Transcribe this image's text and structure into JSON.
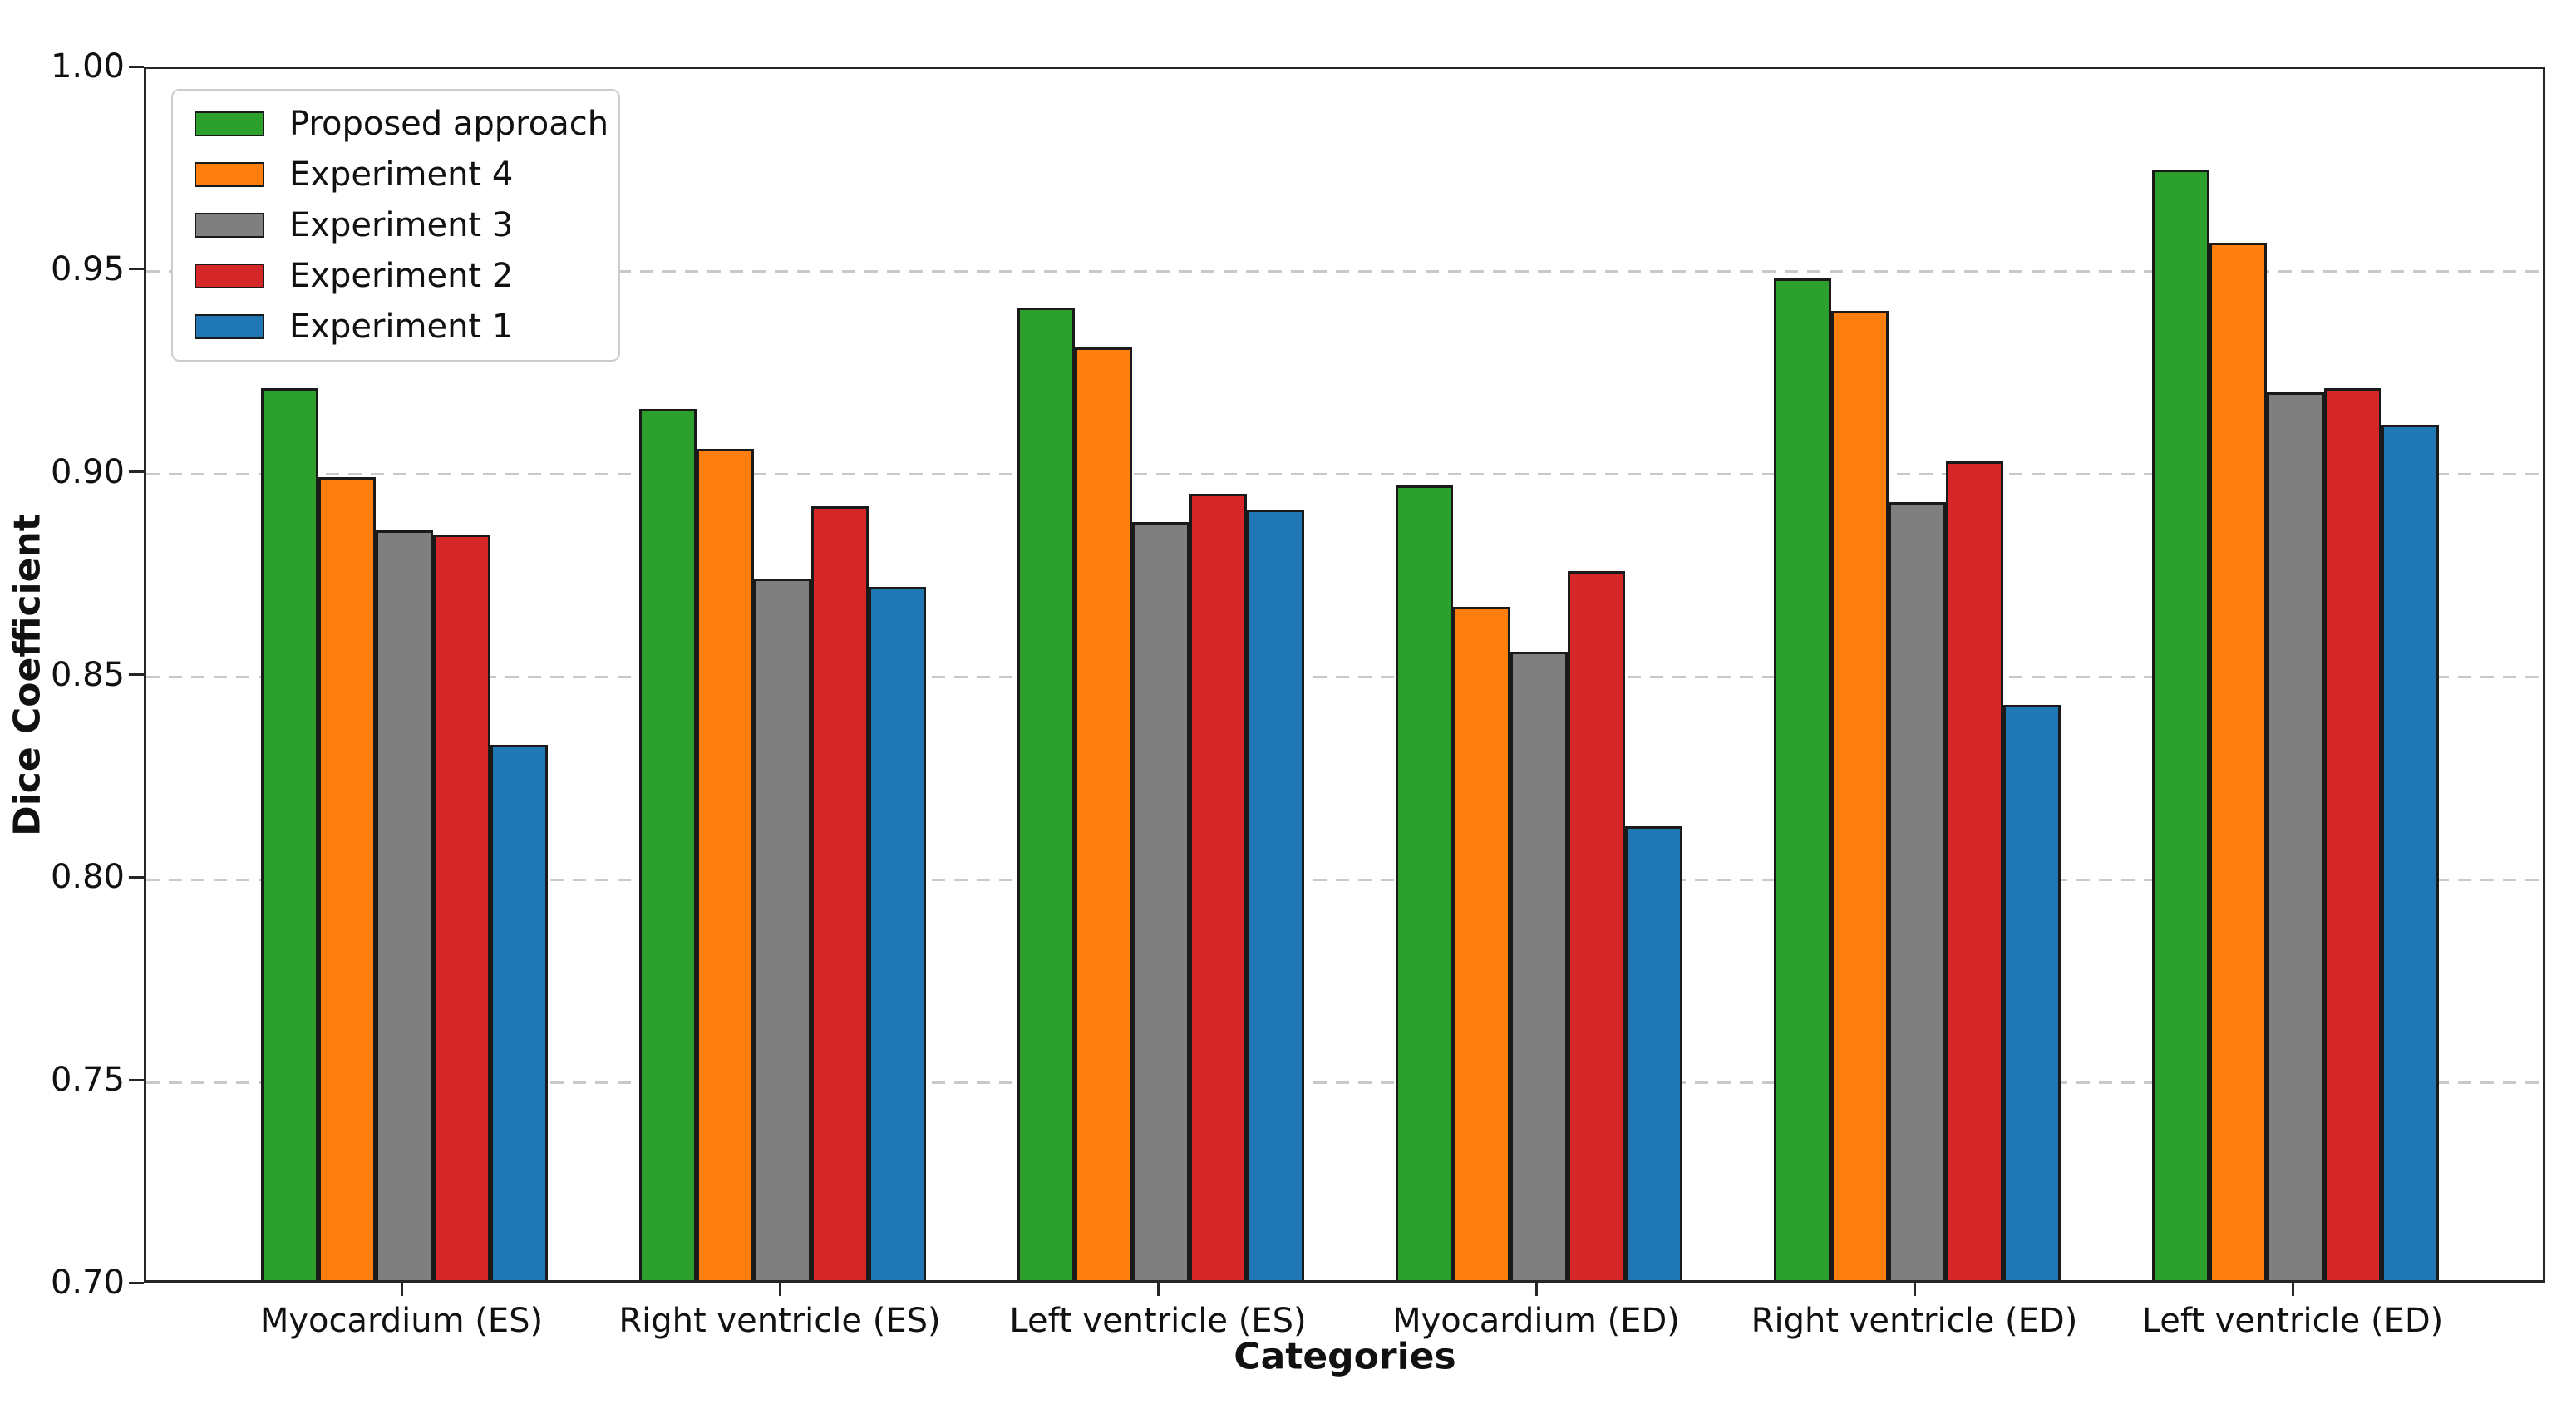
{
  "figure": {
    "background": "#ffffff"
  },
  "chart_data": {
    "type": "bar",
    "title": "",
    "xlabel": "Categories",
    "ylabel": "Dice Coefficient",
    "ylim": [
      0.7,
      1.0
    ],
    "yticks": [
      {
        "label": "1.00",
        "value": 1.0
      },
      {
        "label": "0.95",
        "value": 0.95
      },
      {
        "label": "0.90",
        "value": 0.9
      },
      {
        "label": "0.85",
        "value": 0.85
      },
      {
        "label": "0.80",
        "value": 0.8
      },
      {
        "label": "0.75",
        "value": 0.75
      },
      {
        "label": "0.70",
        "value": 0.7
      }
    ],
    "categories": [
      "Myocardium (ES)",
      "Right ventricle (ES)",
      "Left ventricle (ES)",
      "Myocardium (ED)",
      "Right ventricle (ED)",
      "Left ventricle (ED)"
    ],
    "series": [
      {
        "name": "Proposed approach",
        "color": "#2ca02c",
        "values": [
          0.92,
          0.915,
          0.94,
          0.896,
          0.947,
          0.974
        ]
      },
      {
        "name": "Experiment 4",
        "color": "#ff7f0e",
        "values": [
          0.898,
          0.905,
          0.93,
          0.866,
          0.939,
          0.956
        ]
      },
      {
        "name": "Experiment 3",
        "color": "#7f7f7f",
        "values": [
          0.885,
          0.873,
          0.887,
          0.855,
          0.892,
          0.919
        ]
      },
      {
        "name": "Experiment 2",
        "color": "#d62728",
        "values": [
          0.884,
          0.891,
          0.894,
          0.875,
          0.902,
          0.92
        ]
      },
      {
        "name": "Experiment 1",
        "color": "#1f77b4",
        "values": [
          0.832,
          0.871,
          0.89,
          0.812,
          0.842,
          0.911
        ]
      }
    ],
    "legend_position": "upper left",
    "grid": true,
    "grid_linestyle": "dashed",
    "grid_color": "#c9c9c9",
    "bar_edge_color": "#1a1a1a",
    "axis_color": "#262626"
  }
}
